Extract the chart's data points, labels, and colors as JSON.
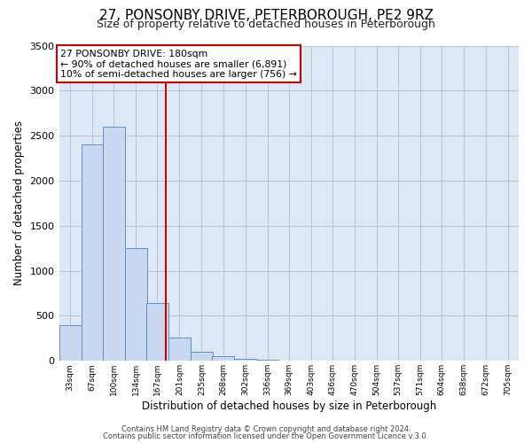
{
  "title": "27, PONSONBY DRIVE, PETERBOROUGH, PE2 9RZ",
  "subtitle": "Size of property relative to detached houses in Peterborough",
  "xlabel": "Distribution of detached houses by size in Peterborough",
  "ylabel": "Number of detached properties",
  "bar_values": [
    400,
    2400,
    2600,
    1250,
    640,
    260,
    100,
    50,
    25,
    10,
    0,
    0,
    0,
    0,
    0,
    0,
    0,
    0,
    0,
    0
  ],
  "bar_labels": [
    "33sqm",
    "67sqm",
    "100sqm",
    "134sqm",
    "167sqm",
    "201sqm",
    "235sqm",
    "268sqm",
    "302sqm",
    "336sqm",
    "369sqm",
    "403sqm",
    "436sqm",
    "470sqm",
    "504sqm",
    "537sqm",
    "571sqm",
    "604sqm",
    "638sqm",
    "672sqm",
    "705sqm"
  ],
  "tick_positions": [
    33,
    67,
    100,
    134,
    167,
    201,
    235,
    268,
    302,
    336,
    369,
    403,
    436,
    470,
    504,
    537,
    571,
    604,
    638,
    672,
    705
  ],
  "bar_color": "#c8d8f0",
  "bar_edge_color": "#6090c8",
  "property_line_x": 180,
  "property_line_color": "#cc0000",
  "ylim": [
    0,
    3500
  ],
  "yticks": [
    0,
    500,
    1000,
    1500,
    2000,
    2500,
    3000,
    3500
  ],
  "annotation_title": "27 PONSONBY DRIVE: 180sqm",
  "annotation_line1": "← 90% of detached houses are smaller (6,891)",
  "annotation_line2": "10% of semi-detached houses are larger (756) →",
  "annotation_box_color": "#ffffff",
  "annotation_box_edge": "#cc0000",
  "footer_line1": "Contains HM Land Registry data © Crown copyright and database right 2024.",
  "footer_line2": "Contains public sector information licensed under the Open Government Licence v.3.0.",
  "background_color": "#ffffff",
  "plot_bg_color": "#dce8f5",
  "grid_color": "#b0bfd0",
  "title_fontsize": 11,
  "subtitle_fontsize": 9
}
